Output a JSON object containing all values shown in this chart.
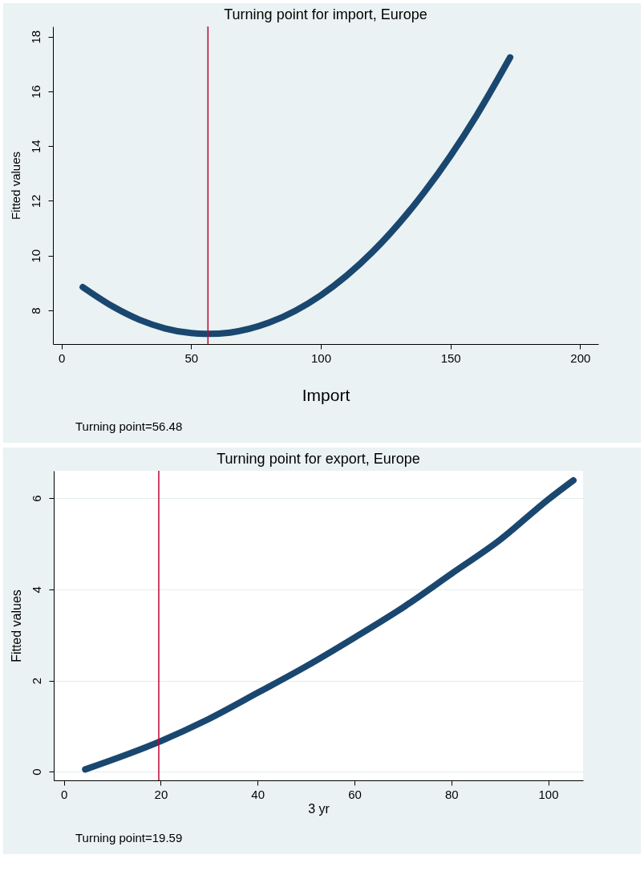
{
  "chart_data": [
    {
      "type": "line",
      "title": "Turning point for import, Europe",
      "xlabel": "Import",
      "ylabel": "Fitted values",
      "annotations": [
        "Turning point=56.48"
      ],
      "x": [
        8.2,
        20,
        30,
        40,
        50,
        56.48,
        65,
        80,
        100,
        120,
        140,
        160,
        173
      ],
      "series": [
        {
          "color": "#1a476f",
          "values": [
            8.85,
            8.13,
            7.66,
            7.34,
            7.17,
            7.14,
            7.19,
            7.55,
            8.55,
            10.14,
            12.33,
            15.11,
            17.24
          ]
        }
      ],
      "xlim": [
        -3.3,
        207
      ],
      "xticks": [
        0,
        50,
        100,
        150,
        200
      ],
      "ylim": [
        6.77,
        18.37
      ],
      "yticks": [
        8,
        10,
        12,
        14,
        16,
        18
      ],
      "grid": false,
      "line_style": "solid",
      "ref_lines": [
        {
          "axis": "x",
          "value": 56.48,
          "color": "#c10534"
        }
      ]
    },
    {
      "type": "line",
      "title": "Turning point for export, Europe",
      "xlabel": "3 yr",
      "ylabel": "Fitted values",
      "annotations": [
        "Turning point=19.59"
      ],
      "x": [
        4.4,
        20,
        30,
        40,
        50,
        60,
        70,
        80,
        90,
        100,
        105.2
      ],
      "series": [
        {
          "color": "#1a476f",
          "values": [
            0.05,
            0.67,
            1.16,
            1.73,
            2.31,
            2.94,
            3.6,
            4.34,
            5.08,
            5.97,
            6.39
          ]
        }
      ],
      "xlim": [
        -2.1,
        107.2
      ],
      "xticks": [
        0,
        20,
        40,
        60,
        80,
        100
      ],
      "ylim": [
        -0.19,
        6.6
      ],
      "yticks": [
        0,
        2,
        4,
        6
      ],
      "grid": "y",
      "line_style": "solid",
      "ref_lines": [
        {
          "axis": "x",
          "value": 19.59,
          "color": "#c10534"
        }
      ]
    }
  ]
}
